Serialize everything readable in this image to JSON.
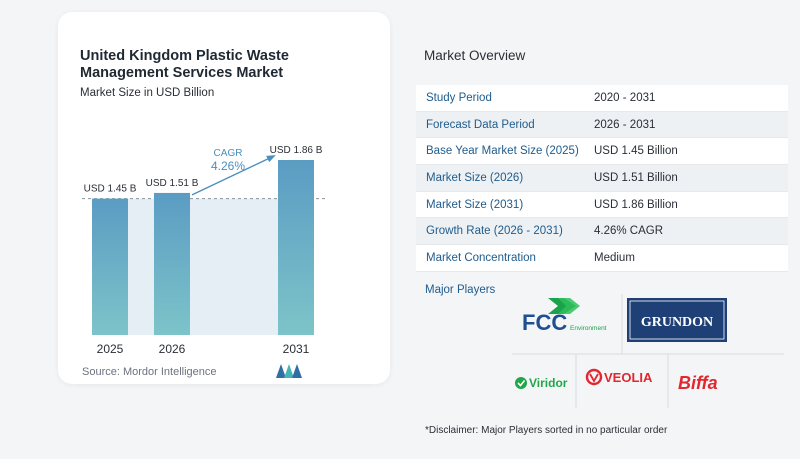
{
  "chart": {
    "title": "United Kingdom Plastic Waste Management Services Market",
    "subtitle": "Market Size in USD Billion",
    "source": "Source:  Mordor Intelligence",
    "cagr_label": "CAGR",
    "cagr_value": "4.26%"
  },
  "chart_data": {
    "type": "bar",
    "categories": [
      "2025",
      "2026",
      "2031"
    ],
    "values": [
      1.45,
      1.51,
      1.86
    ],
    "data_labels": [
      "USD 1.45 B",
      "USD 1.51 B",
      "USD 1.86 B"
    ],
    "ylim": [
      0,
      1.86
    ],
    "baseline_value": 1.45,
    "colors": {
      "bar": "#5b9cc3",
      "bar_bottom": "#7cc4c9",
      "shade": "#dde8f1",
      "arrow": "#4a8fc0"
    }
  },
  "overview": {
    "title": "Market Overview",
    "rows": [
      {
        "label": "Study Period",
        "value": "2020 - 2031"
      },
      {
        "label": "Forecast Data Period",
        "value": "2026 - 2031"
      },
      {
        "label": "Base Year Market Size (2025)",
        "value": "USD 1.45 Billion"
      },
      {
        "label": "Market Size (2026)",
        "value": "USD 1.51 Billion"
      },
      {
        "label": "Market Size (2031)",
        "value": "USD 1.86 Billion"
      },
      {
        "label": "Growth Rate (2026 - 2031)",
        "value": "4.26% CAGR"
      },
      {
        "label": "Market Concentration",
        "value": "Medium"
      }
    ]
  },
  "players": {
    "title": "Major Players",
    "fcc": "FCC",
    "fcc_sub": "Environment",
    "grundon": "GRUNDON",
    "viridor": "Viridor",
    "veolia": "VEOLIA",
    "biffa": "Biffa"
  },
  "disclaimer": "*Disclaimer: Major Players sorted in no particular order"
}
